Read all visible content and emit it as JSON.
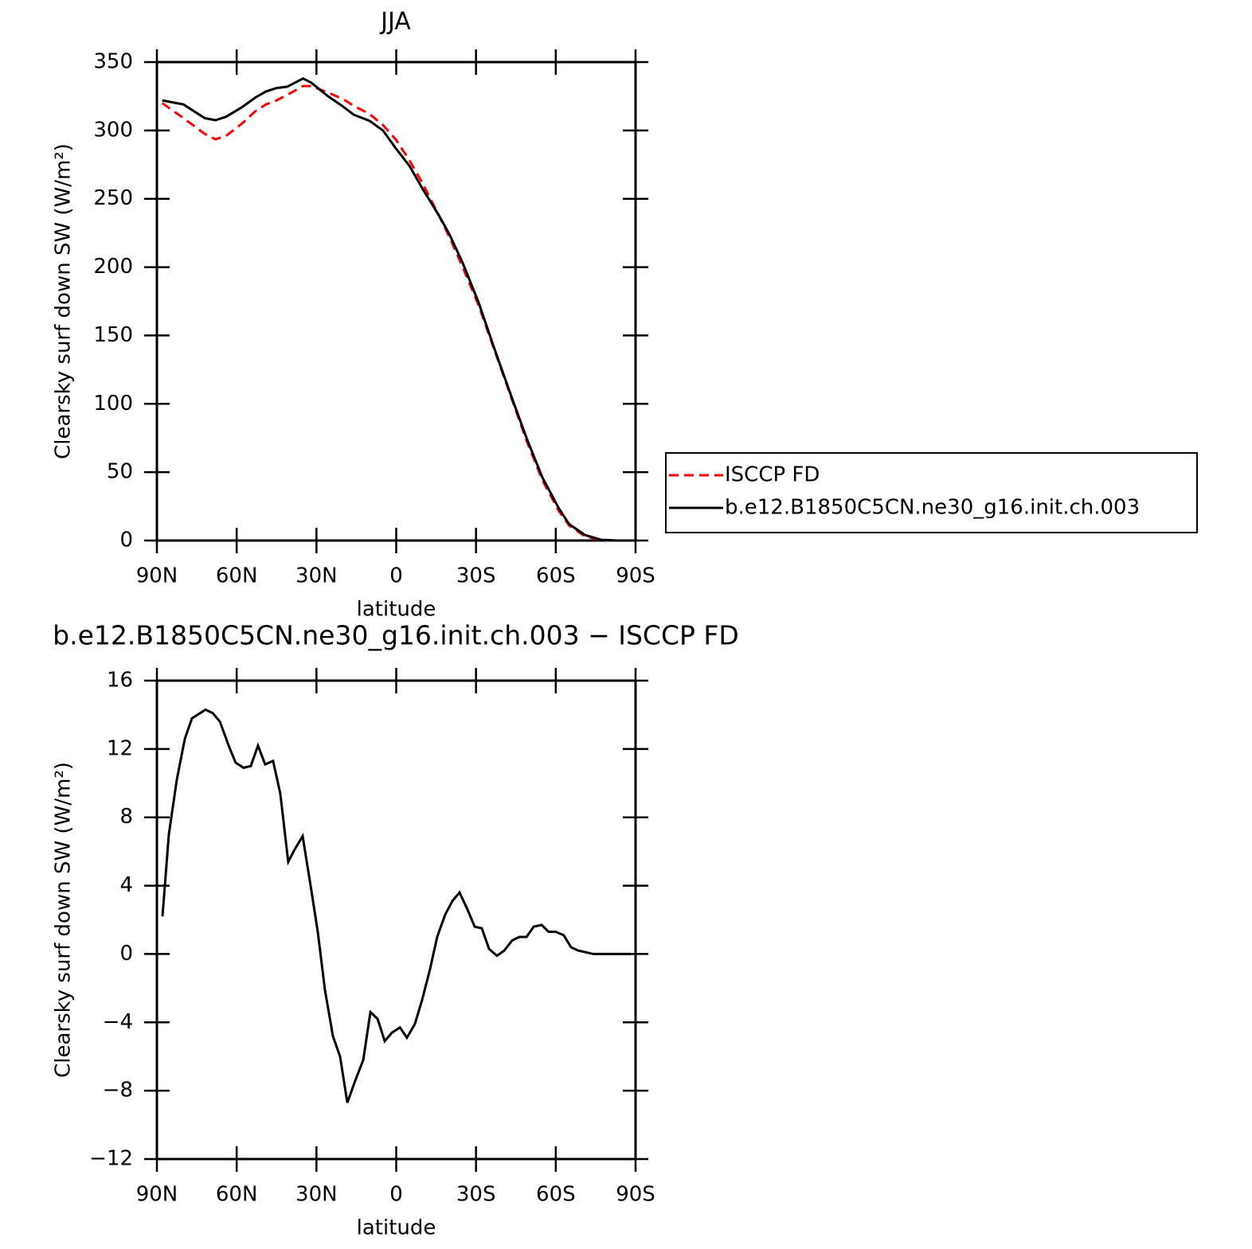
{
  "chart_data": [
    {
      "type": "line",
      "title": "JJA",
      "xlabel": "latitude",
      "ylabel": "Clearsky surf down SW (W/m²)",
      "x": [
        88,
        80,
        72,
        68,
        64,
        58,
        53,
        49,
        45,
        41,
        35,
        32,
        26,
        20,
        16,
        10,
        5,
        0,
        -5,
        -10,
        -16,
        -20,
        -25,
        -31,
        -37,
        -43,
        -49,
        -55,
        -61,
        -65,
        -71,
        -77,
        -83,
        -88
      ],
      "series": [
        {
          "name": "ISCCP FD",
          "color": "#ff0000",
          "style": "dashed",
          "values": [
            320,
            309,
            297.5,
            293.5,
            296,
            305,
            314,
            319,
            322,
            326,
            332.5,
            332.5,
            328,
            323,
            318,
            312,
            304,
            293,
            278,
            261,
            238,
            222,
            200,
            172,
            139,
            106,
            73,
            44,
            22,
            11,
            3,
            0.3,
            0,
            0
          ]
        },
        {
          "name": "b.e12.B1850C5CN.ne30_g16.init.ch.003",
          "color": "#000000",
          "style": "solid",
          "values": [
            322,
            319,
            309,
            307.5,
            310,
            317,
            324,
            328.5,
            331,
            332,
            338,
            335,
            325.5,
            317.5,
            311.5,
            307,
            300,
            286.5,
            274,
            257,
            238,
            224,
            203,
            174,
            140,
            107,
            75,
            46,
            24,
            12,
            4,
            0.5,
            0,
            0
          ]
        }
      ],
      "xlim": [
        90,
        -90
      ],
      "xticks": [
        {
          "value": 90,
          "label": "90N"
        },
        {
          "value": 60,
          "label": "60N"
        },
        {
          "value": 30,
          "label": "30N"
        },
        0,
        {
          "value": -30,
          "label": "30S"
        },
        {
          "value": -60,
          "label": "60S"
        },
        {
          "value": -90,
          "label": "90S"
        }
      ],
      "ylim": [
        0,
        350
      ],
      "yticks": [
        0,
        50,
        100,
        150,
        200,
        250,
        300,
        350
      ],
      "legend": "right"
    },
    {
      "type": "line",
      "title": "b.e12.B1850C5CN.ne30_g16.init.ch.003 − ISCCP FD",
      "xlabel": "latitude",
      "ylabel": "Clearsky surf down SW (W/m²)",
      "x": [
        87.9,
        85.5,
        82.5,
        79.5,
        76.8,
        71.7,
        69,
        66.3,
        63,
        60.4,
        57.4,
        54.7,
        52,
        49.3,
        46.3,
        43.6,
        40.6,
        37.9,
        35.2,
        32.2,
        29.5,
        26.8,
        23.8,
        21.1,
        18.4,
        15.4,
        12.4,
        9.7,
        7,
        4.3,
        1.6,
        -1.4,
        -4,
        -7,
        -9.7,
        -12.7,
        -15.4,
        -18.4,
        -21.1,
        -23.8,
        -26.8,
        -29.5,
        -32.2,
        -34.9,
        -37.9,
        -40.6,
        -43.6,
        -46.3,
        -49,
        -51.7,
        -54.7,
        -57.3,
        -60,
        -63,
        -65.7,
        -68.4,
        -71.4,
        -74.1,
        -77.1,
        -79.8,
        -82.5,
        -88.2
      ],
      "values": [
        2.2,
        7.0,
        10.2,
        12.6,
        13.8,
        14.3,
        14.1,
        13.6,
        12.2,
        11.2,
        10.9,
        11.0,
        12.2,
        11.1,
        11.3,
        9.4,
        5.4,
        6.2,
        6.9,
        4.0,
        1.3,
        -2.1,
        -4.8,
        -6.0,
        -8.7,
        -7.4,
        -6.2,
        -3.4,
        -3.8,
        -5.1,
        -4.6,
        -4.3,
        -4.9,
        -4.1,
        -2.7,
        -0.9,
        1.0,
        2.3,
        3.1,
        3.6,
        2.6,
        1.6,
        1.5,
        0.3,
        -0.1,
        0.2,
        0.8,
        1.0,
        1.0,
        1.6,
        1.7,
        1.3,
        1.3,
        1.1,
        0.4,
        0.2,
        0.1,
        0,
        0,
        0,
        0,
        0
      ],
      "color": "#000000",
      "xlim": [
        90,
        -90
      ],
      "xticks": [
        {
          "value": 90,
          "label": "90N"
        },
        {
          "value": 60,
          "label": "60N"
        },
        {
          "value": 30,
          "label": "30N"
        },
        0,
        {
          "value": -30,
          "label": "30S"
        },
        {
          "value": -60,
          "label": "60S"
        },
        {
          "value": -90,
          "label": "90S"
        }
      ],
      "ylim": [
        -12,
        16
      ],
      "yticks": [
        {
          "value": -12,
          "label": "−12"
        },
        {
          "value": -8,
          "label": "−8"
        },
        {
          "value": -4,
          "label": "−4"
        },
        0,
        4,
        8,
        12,
        16
      ]
    }
  ]
}
